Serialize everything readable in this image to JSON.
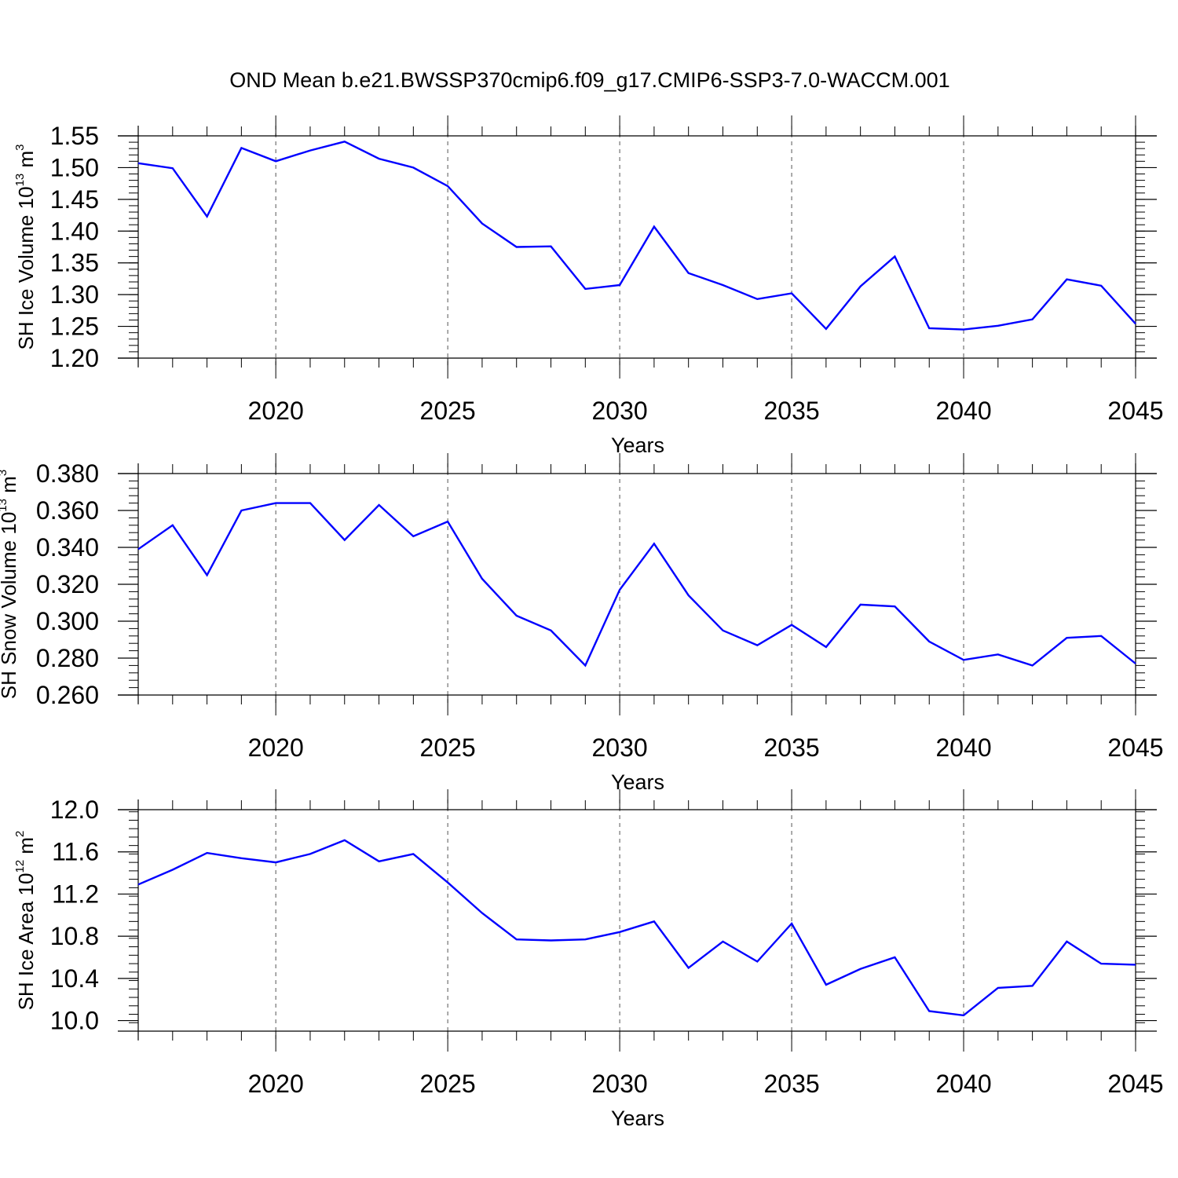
{
  "title": "OND Mean b.e21.BWSSP370cmip6.f09_g17.CMIP6-SSP3-7.0-WACCM.001",
  "line_color": "#0000ff",
  "grid_color": "#555555",
  "chart_data": [
    {
      "type": "line",
      "name_label": "ice-volume",
      "ylabel": {
        "text": "SH Ice Volume 10",
        "exp": "13",
        "unit": " m",
        "unit_exp": "3"
      },
      "xlabel": "Years",
      "xlim": [
        2016,
        2045
      ],
      "ylim": [
        1.2,
        1.55
      ],
      "yticks": [
        "1.20",
        "1.25",
        "1.30",
        "1.35",
        "1.40",
        "1.45",
        "1.50",
        "1.55"
      ],
      "xticks": [
        "2020",
        "2025",
        "2030",
        "2035",
        "2040",
        "2045"
      ],
      "grid_x": true,
      "x": [
        2016,
        2017,
        2018,
        2019,
        2020,
        2021,
        2022,
        2023,
        2024,
        2025,
        2026,
        2027,
        2028,
        2029,
        2030,
        2031,
        2032,
        2033,
        2034,
        2035,
        2036,
        2037,
        2038,
        2039,
        2040,
        2041,
        2042,
        2043,
        2044,
        2045
      ],
      "values": [
        1.507,
        1.499,
        1.423,
        1.531,
        1.51,
        1.527,
        1.541,
        1.514,
        1.5,
        1.471,
        1.412,
        1.375,
        1.376,
        1.309,
        1.315,
        1.407,
        1.334,
        1.315,
        1.293,
        1.302,
        1.246,
        1.313,
        1.36,
        1.247,
        1.245,
        1.251,
        1.261,
        1.324,
        1.314,
        1.254
      ]
    },
    {
      "type": "line",
      "name_label": "snow-volume",
      "ylabel": {
        "text": "SH Snow Volume 10",
        "exp": "13",
        "unit": " m",
        "unit_exp": "3"
      },
      "xlabel": "Years",
      "xlim": [
        2016,
        2045
      ],
      "ylim": [
        0.26,
        0.38
      ],
      "yticks": [
        "0.260",
        "0.280",
        "0.300",
        "0.320",
        "0.340",
        "0.360",
        "0.380"
      ],
      "xticks": [
        "2020",
        "2025",
        "2030",
        "2035",
        "2040",
        "2045"
      ],
      "grid_x": true,
      "x": [
        2016,
        2017,
        2018,
        2019,
        2020,
        2021,
        2022,
        2023,
        2024,
        2025,
        2026,
        2027,
        2028,
        2029,
        2030,
        2031,
        2032,
        2033,
        2034,
        2035,
        2036,
        2037,
        2038,
        2039,
        2040,
        2041,
        2042,
        2043,
        2044,
        2045
      ],
      "values": [
        0.339,
        0.352,
        0.325,
        0.36,
        0.364,
        0.364,
        0.344,
        0.363,
        0.346,
        0.354,
        0.323,
        0.303,
        0.295,
        0.276,
        0.317,
        0.342,
        0.314,
        0.295,
        0.287,
        0.298,
        0.286,
        0.309,
        0.308,
        0.289,
        0.279,
        0.282,
        0.276,
        0.291,
        0.292,
        0.277
      ]
    },
    {
      "type": "line",
      "name_label": "ice-area",
      "ylabel": {
        "text": "SH Ice Area 10",
        "exp": "12",
        "unit": " m",
        "unit_exp": "2"
      },
      "xlabel": "Years",
      "xlim": [
        2016,
        2045
      ],
      "ylim": [
        9.9,
        12.0
      ],
      "yticks": [
        "10.0",
        "10.4",
        "10.8",
        "11.2",
        "11.6",
        "12.0"
      ],
      "xticks": [
        "2020",
        "2025",
        "2030",
        "2035",
        "2040",
        "2045"
      ],
      "grid_x": true,
      "x": [
        2016,
        2017,
        2018,
        2019,
        2020,
        2021,
        2022,
        2023,
        2024,
        2025,
        2026,
        2027,
        2028,
        2029,
        2030,
        2031,
        2032,
        2033,
        2034,
        2035,
        2036,
        2037,
        2038,
        2039,
        2040,
        2041,
        2042,
        2043,
        2044,
        2045
      ],
      "values": [
        11.29,
        11.43,
        11.59,
        11.54,
        11.5,
        11.58,
        11.71,
        11.51,
        11.58,
        11.31,
        11.02,
        10.77,
        10.76,
        10.77,
        10.84,
        10.94,
        10.5,
        10.75,
        10.56,
        10.92,
        10.34,
        10.49,
        10.6,
        10.09,
        10.05,
        10.31,
        10.33,
        10.75,
        10.54,
        10.53
      ]
    }
  ]
}
